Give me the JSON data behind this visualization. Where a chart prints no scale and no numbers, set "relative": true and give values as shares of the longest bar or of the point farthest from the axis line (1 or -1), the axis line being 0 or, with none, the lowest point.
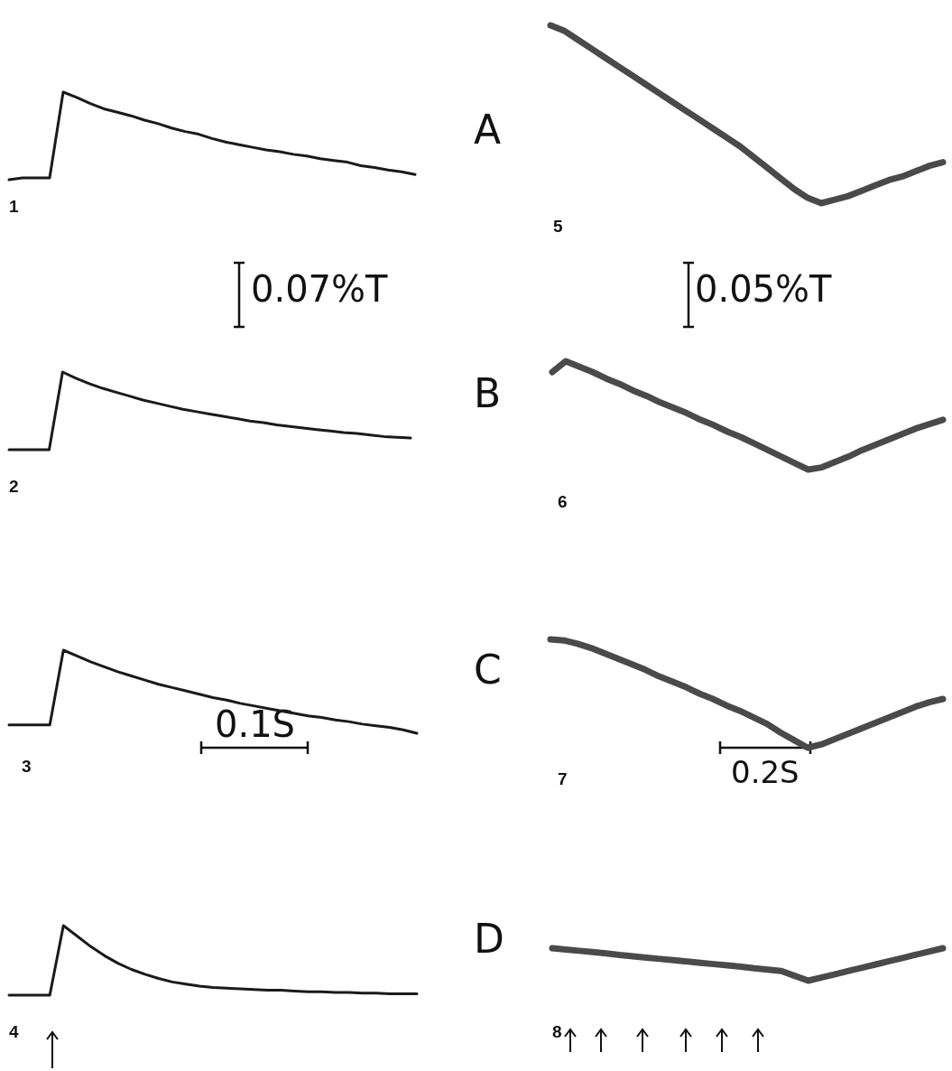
{
  "chart_data": [
    {
      "type": "line",
      "relative": true,
      "title": "1",
      "annotations": [
        "0.07%T",
        "0.1S"
      ],
      "categories": [
        null,
        null,
        null,
        null,
        null,
        null,
        null,
        null,
        null,
        null,
        null,
        null,
        null,
        null,
        null,
        null,
        null,
        null,
        null,
        null,
        null,
        null,
        null,
        null,
        null,
        null,
        null,
        null,
        null,
        null,
        null
      ],
      "color": "#1a1a1a",
      "values": [
        0,
        0.02,
        0.02,
        0.02,
        1,
        0.94,
        0.87,
        0.81,
        0.77,
        0.73,
        0.68,
        0.64,
        0.59,
        0.55,
        0.52,
        0.47,
        0.43,
        0.4,
        0.37,
        0.34,
        0.32,
        0.29,
        0.27,
        0.24,
        0.22,
        0.2,
        0.16,
        0.14,
        0.11,
        0.09,
        0.06
      ]
    },
    {
      "type": "line",
      "relative": true,
      "title": "2",
      "categories": [
        null,
        null,
        null,
        null,
        null,
        null,
        null,
        null,
        null,
        null,
        null,
        null,
        null,
        null,
        null,
        null,
        null,
        null,
        null,
        null,
        null,
        null,
        null,
        null,
        null,
        null,
        null,
        null,
        null,
        null,
        null
      ],
      "color": "#1a1a1a",
      "values": [
        0,
        0,
        0,
        0,
        1,
        0.92,
        0.85,
        0.79,
        0.74,
        0.69,
        0.64,
        0.6,
        0.56,
        0.52,
        0.49,
        0.46,
        0.43,
        0.4,
        0.37,
        0.35,
        0.32,
        0.3,
        0.28,
        0.26,
        0.24,
        0.22,
        0.21,
        0.19,
        0.17,
        0.16,
        0.15
      ]
    },
    {
      "type": "line",
      "relative": true,
      "title": "3",
      "categories": [
        null,
        null,
        null,
        null,
        null,
        null,
        null,
        null,
        null,
        null,
        null,
        null,
        null,
        null,
        null,
        null,
        null,
        null,
        null,
        null,
        null,
        null,
        null,
        null,
        null,
        null,
        null,
        null,
        null,
        null,
        null
      ],
      "color": "#1a1a1a",
      "values": [
        0.1,
        0.1,
        0.1,
        0.1,
        1,
        0.93,
        0.86,
        0.8,
        0.74,
        0.69,
        0.64,
        0.59,
        0.55,
        0.51,
        0.47,
        0.43,
        0.4,
        0.36,
        0.33,
        0.3,
        0.27,
        0.24,
        0.21,
        0.19,
        0.16,
        0.14,
        0.11,
        0.09,
        0.07,
        0.04,
        0
      ]
    },
    {
      "type": "line",
      "relative": true,
      "title": "4",
      "categories": [
        null,
        null,
        null,
        null,
        null,
        null,
        null,
        null,
        null,
        null,
        null,
        null,
        null,
        null,
        null,
        null,
        null,
        null,
        null,
        null,
        null,
        null,
        null,
        null,
        null,
        null,
        null,
        null,
        null,
        null,
        null
      ],
      "color": "#1a1a1a",
      "values": [
        0,
        0,
        0,
        0,
        1,
        0.85,
        0.7,
        0.57,
        0.46,
        0.37,
        0.3,
        0.24,
        0.19,
        0.16,
        0.13,
        0.11,
        0.1,
        0.09,
        0.08,
        0.07,
        0.07,
        0.06,
        0.05,
        0.05,
        0.04,
        0.04,
        0.03,
        0.03,
        0.02,
        0.02,
        0.02
      ]
    },
    {
      "type": "line",
      "relative": true,
      "title": "5",
      "annotations": [
        "A",
        "0.05%T",
        "0.2S"
      ],
      "categories": [
        null,
        null,
        null,
        null,
        null,
        null,
        null,
        null,
        null,
        null,
        null,
        null,
        null,
        null,
        null,
        null,
        null,
        null,
        null,
        null,
        null,
        null,
        null,
        null,
        null,
        null,
        null,
        null,
        null,
        null
      ],
      "color": "#4a4a4a",
      "values": [
        1,
        0.97,
        0.92,
        0.87,
        0.82,
        0.77,
        0.72,
        0.67,
        0.62,
        0.57,
        0.52,
        0.47,
        0.42,
        0.37,
        0.32,
        0.26,
        0.2,
        0.14,
        0.08,
        0.03,
        0,
        0.02,
        0.04,
        0.07,
        0.1,
        0.13,
        0.15,
        0.18,
        0.21,
        0.23
      ]
    },
    {
      "type": "line",
      "relative": true,
      "title": "6",
      "annotations": [
        "B"
      ],
      "categories": [
        null,
        null,
        null,
        null,
        null,
        null,
        null,
        null,
        null,
        null,
        null,
        null,
        null,
        null,
        null,
        null,
        null,
        null,
        null,
        null,
        null,
        null,
        null,
        null,
        null,
        null,
        null,
        null,
        null,
        null
      ],
      "color": "#4a4a4a",
      "values": [
        0.9,
        1,
        0.95,
        0.9,
        0.84,
        0.79,
        0.73,
        0.68,
        0.62,
        0.57,
        0.52,
        0.46,
        0.41,
        0.35,
        0.3,
        0.24,
        0.18,
        0.12,
        0.06,
        0,
        0.02,
        0.07,
        0.12,
        0.18,
        0.23,
        0.28,
        0.33,
        0.38,
        0.42,
        0.46
      ]
    },
    {
      "type": "line",
      "relative": true,
      "title": "7",
      "annotations": [
        "C"
      ],
      "categories": [
        null,
        null,
        null,
        null,
        null,
        null,
        null,
        null,
        null,
        null,
        null,
        null,
        null,
        null,
        null,
        null,
        null,
        null,
        null,
        null,
        null,
        null,
        null,
        null,
        null,
        null,
        null,
        null,
        null,
        null
      ],
      "color": "#4a4a4a",
      "values": [
        1,
        0.99,
        0.96,
        0.92,
        0.87,
        0.82,
        0.77,
        0.72,
        0.66,
        0.61,
        0.56,
        0.5,
        0.45,
        0.39,
        0.34,
        0.28,
        0.22,
        0.14,
        0.07,
        0,
        0.03,
        0.08,
        0.13,
        0.18,
        0.23,
        0.28,
        0.33,
        0.38,
        0.42,
        0.45
      ]
    },
    {
      "type": "line",
      "relative": true,
      "title": "8",
      "annotations": [
        "D"
      ],
      "categories": [
        null,
        null,
        null,
        null,
        null,
        null,
        null,
        null,
        null,
        null,
        null,
        null,
        null,
        null,
        null,
        null,
        null,
        null,
        null,
        null,
        null,
        null,
        null,
        null,
        null,
        null,
        null,
        null,
        null,
        null
      ],
      "color": "#4a4a4a",
      "values": [
        1,
        0.96,
        0.92,
        0.88,
        0.84,
        0.79,
        0.75,
        0.71,
        0.67,
        0.63,
        0.59,
        0.55,
        0.51,
        0.47,
        0.43,
        0.38,
        0.34,
        0.3,
        0.15,
        0,
        0.1,
        0.2,
        0.3,
        0.4,
        0.5,
        0.6,
        0.7,
        0.8,
        0.9,
        1
      ]
    }
  ]
}
